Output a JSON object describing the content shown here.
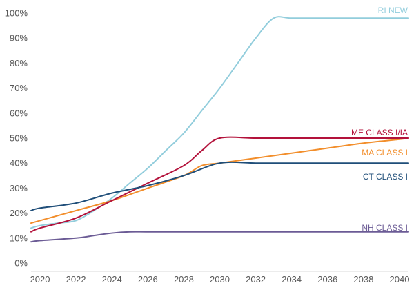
{
  "chart_data": {
    "type": "line",
    "title": "",
    "xlabel": "",
    "ylabel": "",
    "xlim": [
      2019.5,
      2040.5
    ],
    "ylim": [
      0,
      100
    ],
    "x_ticks": [
      2020,
      2022,
      2024,
      2026,
      2028,
      2030,
      2032,
      2034,
      2036,
      2038,
      2040
    ],
    "x_tick_labels": [
      "2020",
      "2022",
      "2024",
      "2026",
      "2028",
      "2030",
      "2032",
      "2034",
      "2036",
      "2038",
      "2040"
    ],
    "y_ticks": [
      0,
      10,
      20,
      30,
      40,
      50,
      60,
      70,
      80,
      90,
      100
    ],
    "y_tick_labels": [
      "0%",
      "10%",
      "20%",
      "30%",
      "40%",
      "50%",
      "60%",
      "70%",
      "80%",
      "90%",
      "100%"
    ],
    "grid": false,
    "legend": "inline labels at line ends",
    "series": [
      {
        "name": "RI NEW",
        "color": "#92CDDC",
        "points": [
          [
            2019.5,
            14
          ],
          [
            2020,
            15
          ],
          [
            2021,
            16
          ],
          [
            2022,
            17
          ],
          [
            2023,
            21
          ],
          [
            2024,
            26
          ],
          [
            2025,
            32
          ],
          [
            2026,
            38
          ],
          [
            2027,
            45
          ],
          [
            2028,
            52
          ],
          [
            2029,
            61
          ],
          [
            2030,
            70
          ],
          [
            2031,
            80
          ],
          [
            2032,
            90
          ],
          [
            2033,
            98
          ],
          [
            2034,
            98
          ],
          [
            2036,
            98
          ],
          [
            2038,
            98
          ],
          [
            2040,
            98
          ],
          [
            2040.5,
            98
          ]
        ]
      },
      {
        "name": "ME CLASS I/IA",
        "color": "#B3123B",
        "points": [
          [
            2019.5,
            12.5
          ],
          [
            2020,
            14
          ],
          [
            2022,
            18
          ],
          [
            2024,
            25
          ],
          [
            2026,
            32
          ],
          [
            2028,
            39
          ],
          [
            2029,
            45
          ],
          [
            2030,
            50
          ],
          [
            2032,
            50
          ],
          [
            2034,
            50
          ],
          [
            2036,
            50
          ],
          [
            2038,
            50
          ],
          [
            2040,
            50
          ],
          [
            2040.5,
            50
          ]
        ]
      },
      {
        "name": "MA CLASS I",
        "color": "#F28E2B",
        "points": [
          [
            2019.5,
            16
          ],
          [
            2020,
            17
          ],
          [
            2022,
            21
          ],
          [
            2024,
            25
          ],
          [
            2026,
            30
          ],
          [
            2028,
            35
          ],
          [
            2029,
            39
          ],
          [
            2030,
            40
          ],
          [
            2032,
            42
          ],
          [
            2034,
            44
          ],
          [
            2036,
            46
          ],
          [
            2038,
            48
          ],
          [
            2040,
            49.5
          ],
          [
            2040.5,
            50
          ]
        ]
      },
      {
        "name": "CT CLASS I",
        "color": "#1F4E79",
        "points": [
          [
            2019.5,
            21
          ],
          [
            2020,
            22
          ],
          [
            2022,
            24
          ],
          [
            2024,
            28
          ],
          [
            2026,
            31
          ],
          [
            2028,
            35
          ],
          [
            2030,
            40
          ],
          [
            2032,
            40
          ],
          [
            2034,
            40
          ],
          [
            2036,
            40
          ],
          [
            2038,
            40
          ],
          [
            2040,
            40
          ],
          [
            2040.5,
            40
          ]
        ]
      },
      {
        "name": "NH CLASS I",
        "color": "#6B5B95",
        "points": [
          [
            2019.5,
            8.5
          ],
          [
            2020,
            9
          ],
          [
            2022,
            10
          ],
          [
            2023,
            11
          ],
          [
            2024,
            12
          ],
          [
            2025,
            12.5
          ],
          [
            2026,
            12.5
          ],
          [
            2028,
            12.5
          ],
          [
            2030,
            12.5
          ],
          [
            2032,
            12.5
          ],
          [
            2034,
            12.5
          ],
          [
            2036,
            12.5
          ],
          [
            2038,
            12.5
          ],
          [
            2040,
            12.5
          ],
          [
            2040.5,
            12.5
          ]
        ]
      }
    ]
  }
}
